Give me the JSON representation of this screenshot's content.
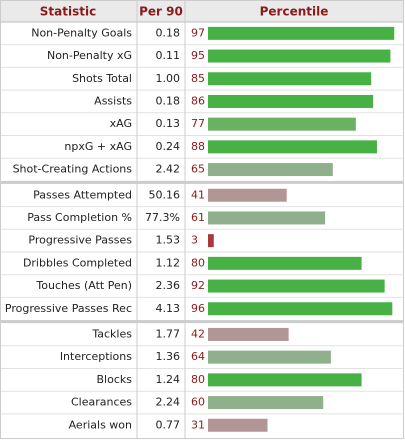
{
  "table": {
    "header": [
      "Statistic",
      "Per 90",
      "Percentile"
    ],
    "groups": [
      [
        {
          "statistic": "Non-Penalty Goals",
          "per90": "0.18",
          "percentile": 97,
          "color": "#48b146"
        },
        {
          "statistic": "Non-Penalty xG",
          "per90": "0.11",
          "percentile": 95,
          "color": "#48b146"
        },
        {
          "statistic": "Shots Total",
          "per90": "1.00",
          "percentile": 85,
          "color": "#48b146"
        },
        {
          "statistic": "Assists",
          "per90": "0.18",
          "percentile": 86,
          "color": "#48b146"
        },
        {
          "statistic": "xAG",
          "per90": "0.13",
          "percentile": 77,
          "color": "#68b262"
        },
        {
          "statistic": "npxG + xAG",
          "per90": "0.24",
          "percentile": 88,
          "color": "#48b146"
        },
        {
          "statistic": "Shot-Creating Actions",
          "per90": "2.42",
          "percentile": 65,
          "color": "#8eb08a"
        }
      ],
      [
        {
          "statistic": "Passes Attempted",
          "per90": "50.16",
          "percentile": 41,
          "color": "#b29696"
        },
        {
          "statistic": "Pass Completion %",
          "per90": "77.3%",
          "percentile": 61,
          "color": "#8eb08a"
        },
        {
          "statistic": "Progressive Passes",
          "per90": "1.53",
          "percentile": 3,
          "color": "#a83a3a"
        },
        {
          "statistic": "Dribbles Completed",
          "per90": "1.12",
          "percentile": 80,
          "color": "#48b146"
        },
        {
          "statistic": "Touches (Att Pen)",
          "per90": "2.36",
          "percentile": 92,
          "color": "#48b146"
        },
        {
          "statistic": "Progressive Passes Rec",
          "per90": "4.13",
          "percentile": 96,
          "color": "#48b146"
        }
      ],
      [
        {
          "statistic": "Tackles",
          "per90": "1.77",
          "percentile": 42,
          "color": "#b29696"
        },
        {
          "statistic": "Interceptions",
          "per90": "1.36",
          "percentile": 64,
          "color": "#8eb08a"
        },
        {
          "statistic": "Blocks",
          "per90": "1.24",
          "percentile": 80,
          "color": "#48b146"
        },
        {
          "statistic": "Clearances",
          "per90": "2.24",
          "percentile": 60,
          "color": "#8eb08a"
        },
        {
          "statistic": "Aerials won",
          "per90": "0.77",
          "percentile": 31,
          "color": "#b29696"
        }
      ]
    ]
  }
}
